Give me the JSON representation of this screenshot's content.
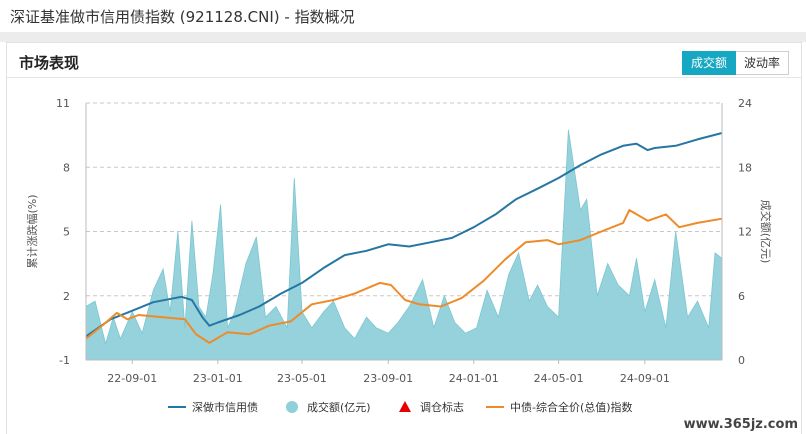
{
  "page": {
    "title": "深证基准做市信用债指数 (921128.CNI) - 指数概况"
  },
  "section": {
    "title": "市场表现"
  },
  "tabs": [
    {
      "label": "成交额",
      "active": true
    },
    {
      "label": "波动率",
      "active": false
    }
  ],
  "watermark": "www.365jz.com",
  "colors": {
    "primary_line": "#2676a3",
    "secondary_line": "#ee8b28",
    "area": "#8fd0da",
    "marker": "#e60000",
    "accent": "#16a7c3"
  },
  "chart_data": {
    "type": "line",
    "left_axis": {
      "label": "累计涨跌幅(%)",
      "ticks": [
        -1,
        2,
        5,
        8,
        11
      ],
      "range": [
        -1,
        11
      ]
    },
    "right_axis": {
      "label": "成交额(亿元)",
      "ticks": [
        0,
        6,
        12,
        18,
        24
      ],
      "range": [
        0,
        24
      ]
    },
    "x_ticks": [
      "22-09-01",
      "23-01-01",
      "23-05-01",
      "23-09-01",
      "24-01-01",
      "24-05-01",
      "24-09-01"
    ],
    "x_range": [
      "2022-06-27",
      "2024-12-20"
    ],
    "legend": [
      {
        "name": "深做市信用债",
        "symbol": "line",
        "color": "#2676a3"
      },
      {
        "name": "成交额(亿元)",
        "symbol": "circle",
        "color": "#8fd0da"
      },
      {
        "name": "调仓标志",
        "symbol": "triangle",
        "color": "#e60000"
      },
      {
        "name": "中债-综合全价(总值)指数",
        "symbol": "line",
        "color": "#ee8b28"
      }
    ],
    "series": [
      {
        "name": "深做市信用债",
        "axis": "left",
        "points": [
          [
            "2022-06-27",
            0.1
          ],
          [
            "2022-08-01",
            0.9
          ],
          [
            "2022-09-01",
            1.3
          ],
          [
            "2022-10-01",
            1.7
          ],
          [
            "2022-11-10",
            1.95
          ],
          [
            "2022-11-25",
            1.8
          ],
          [
            "2022-12-10",
            1.0
          ],
          [
            "2022-12-20",
            0.6
          ],
          [
            "2023-01-01",
            0.75
          ],
          [
            "2023-02-01",
            1.1
          ],
          [
            "2023-03-01",
            1.5
          ],
          [
            "2023-04-01",
            2.1
          ],
          [
            "2023-05-01",
            2.6
          ],
          [
            "2023-06-01",
            3.3
          ],
          [
            "2023-07-01",
            3.9
          ],
          [
            "2023-08-01",
            4.1
          ],
          [
            "2023-09-01",
            4.4
          ],
          [
            "2023-10-01",
            4.3
          ],
          [
            "2023-11-01",
            4.5
          ],
          [
            "2023-12-01",
            4.7
          ],
          [
            "2024-01-01",
            5.2
          ],
          [
            "2024-02-01",
            5.8
          ],
          [
            "2024-03-01",
            6.5
          ],
          [
            "2024-04-01",
            7.0
          ],
          [
            "2024-05-01",
            7.5
          ],
          [
            "2024-06-01",
            8.1
          ],
          [
            "2024-07-01",
            8.6
          ],
          [
            "2024-08-01",
            9.0
          ],
          [
            "2024-08-20",
            9.1
          ],
          [
            "2024-09-05",
            8.8
          ],
          [
            "2024-09-15",
            8.9
          ],
          [
            "2024-10-15",
            9.0
          ],
          [
            "2024-11-15",
            9.3
          ],
          [
            "2024-12-20",
            9.6
          ]
        ]
      },
      {
        "name": "中债-综合全价(总值)指数",
        "axis": "left",
        "points": [
          [
            "2022-06-27",
            0.0
          ],
          [
            "2022-07-20",
            0.6
          ],
          [
            "2022-08-10",
            1.2
          ],
          [
            "2022-08-25",
            0.9
          ],
          [
            "2022-09-10",
            1.1
          ],
          [
            "2022-10-15",
            1.0
          ],
          [
            "2022-11-15",
            0.9
          ],
          [
            "2022-12-01",
            0.2
          ],
          [
            "2022-12-20",
            -0.2
          ],
          [
            "2023-01-15",
            0.3
          ],
          [
            "2023-02-15",
            0.2
          ],
          [
            "2023-03-15",
            0.6
          ],
          [
            "2023-04-15",
            0.8
          ],
          [
            "2023-05-15",
            1.6
          ],
          [
            "2023-06-15",
            1.8
          ],
          [
            "2023-07-15",
            2.1
          ],
          [
            "2023-08-20",
            2.6
          ],
          [
            "2023-09-05",
            2.5
          ],
          [
            "2023-09-25",
            1.8
          ],
          [
            "2023-10-15",
            1.6
          ],
          [
            "2023-11-15",
            1.5
          ],
          [
            "2023-12-15",
            1.9
          ],
          [
            "2024-01-15",
            2.7
          ],
          [
            "2024-02-15",
            3.7
          ],
          [
            "2024-03-15",
            4.5
          ],
          [
            "2024-04-15",
            4.6
          ],
          [
            "2024-05-01",
            4.4
          ],
          [
            "2024-06-01",
            4.6
          ],
          [
            "2024-07-01",
            5.0
          ],
          [
            "2024-08-01",
            5.4
          ],
          [
            "2024-08-10",
            6.0
          ],
          [
            "2024-09-05",
            5.5
          ],
          [
            "2024-10-01",
            5.8
          ],
          [
            "2024-10-20",
            5.2
          ],
          [
            "2024-11-15",
            5.4
          ],
          [
            "2024-12-20",
            5.6
          ]
        ]
      },
      {
        "name": "成交额(亿元)",
        "axis": "right",
        "type": "area",
        "points": [
          [
            "2022-06-27",
            5.0
          ],
          [
            "2022-07-10",
            5.5
          ],
          [
            "2022-07-25",
            1.5
          ],
          [
            "2022-08-05",
            4.0
          ],
          [
            "2022-08-15",
            2.0
          ],
          [
            "2022-09-01",
            4.5
          ],
          [
            "2022-09-15",
            2.5
          ],
          [
            "2022-10-01",
            6.5
          ],
          [
            "2022-10-15",
            8.5
          ],
          [
            "2022-10-25",
            4.5
          ],
          [
            "2022-11-05",
            12.0
          ],
          [
            "2022-11-15",
            3.0
          ],
          [
            "2022-11-25",
            13.0
          ],
          [
            "2022-12-05",
            5.0
          ],
          [
            "2022-12-15",
            4.0
          ],
          [
            "2022-12-25",
            8.0
          ],
          [
            "2023-01-05",
            14.5
          ],
          [
            "2023-01-15",
            3.0
          ],
          [
            "2023-01-25",
            4.5
          ],
          [
            "2023-02-10",
            9.0
          ],
          [
            "2023-02-25",
            11.5
          ],
          [
            "2023-03-10",
            4.0
          ],
          [
            "2023-03-25",
            5.0
          ],
          [
            "2023-04-10",
            3.0
          ],
          [
            "2023-04-20",
            17.0
          ],
          [
            "2023-05-01",
            4.5
          ],
          [
            "2023-05-15",
            3.0
          ],
          [
            "2023-06-01",
            4.5
          ],
          [
            "2023-06-15",
            5.5
          ],
          [
            "2023-07-01",
            3.0
          ],
          [
            "2023-07-15",
            2.0
          ],
          [
            "2023-08-01",
            4.0
          ],
          [
            "2023-08-15",
            3.0
          ],
          [
            "2023-09-01",
            2.5
          ],
          [
            "2023-09-15",
            3.5
          ],
          [
            "2023-10-01",
            5.0
          ],
          [
            "2023-10-20",
            7.5
          ],
          [
            "2023-11-05",
            3.0
          ],
          [
            "2023-11-20",
            6.0
          ],
          [
            "2023-12-05",
            3.5
          ],
          [
            "2023-12-20",
            2.5
          ],
          [
            "2024-01-05",
            3.0
          ],
          [
            "2024-01-20",
            6.5
          ],
          [
            "2024-02-05",
            4.0
          ],
          [
            "2024-02-20",
            8.0
          ],
          [
            "2024-03-05",
            10.0
          ],
          [
            "2024-03-20",
            5.5
          ],
          [
            "2024-04-01",
            7.0
          ],
          [
            "2024-04-15",
            5.0
          ],
          [
            "2024-05-01",
            4.0
          ],
          [
            "2024-05-15",
            21.5
          ],
          [
            "2024-06-01",
            14.0
          ],
          [
            "2024-06-10",
            15.0
          ],
          [
            "2024-06-25",
            6.0
          ],
          [
            "2024-07-10",
            9.0
          ],
          [
            "2024-07-25",
            7.0
          ],
          [
            "2024-08-10",
            6.0
          ],
          [
            "2024-08-20",
            9.5
          ],
          [
            "2024-09-01",
            4.5
          ],
          [
            "2024-09-15",
            7.5
          ],
          [
            "2024-10-01",
            3.0
          ],
          [
            "2024-10-15",
            12.0
          ],
          [
            "2024-11-01",
            4.0
          ],
          [
            "2024-11-15",
            5.5
          ],
          [
            "2024-12-01",
            3.0
          ],
          [
            "2024-12-10",
            10.0
          ],
          [
            "2024-12-20",
            9.5
          ]
        ]
      }
    ]
  }
}
